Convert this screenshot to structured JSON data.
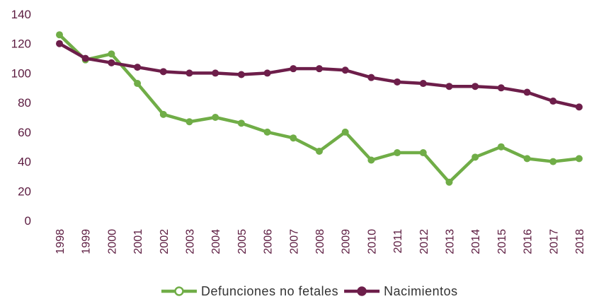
{
  "chart_data": {
    "type": "line",
    "categories": [
      "1998",
      "1999",
      "2000",
      "2001",
      "2002",
      "2003",
      "2004",
      "2005",
      "2006",
      "2007",
      "2008",
      "2009",
      "2010",
      "2011",
      "2012",
      "2013",
      "2014",
      "2015",
      "2016",
      "2017",
      "2018"
    ],
    "series": [
      {
        "name": "Defunciones no fetales",
        "color": "#70ad47",
        "values": [
          126,
          109,
          113,
          93,
          72,
          67,
          70,
          66,
          60,
          56,
          47,
          60,
          41,
          46,
          46,
          26,
          43,
          50,
          42,
          40,
          42
        ]
      },
      {
        "name": "Nacimientos",
        "color": "#6d1e4a",
        "values": [
          120,
          110,
          107,
          104,
          101,
          100,
          100,
          99,
          100,
          103,
          103,
          102,
          97,
          94,
          93,
          91,
          91,
          90,
          87,
          81,
          77
        ]
      }
    ],
    "ylim": [
      0,
      140
    ],
    "yticks": [
      0,
      20,
      40,
      60,
      80,
      100,
      120,
      140
    ],
    "legend": "bottom"
  }
}
